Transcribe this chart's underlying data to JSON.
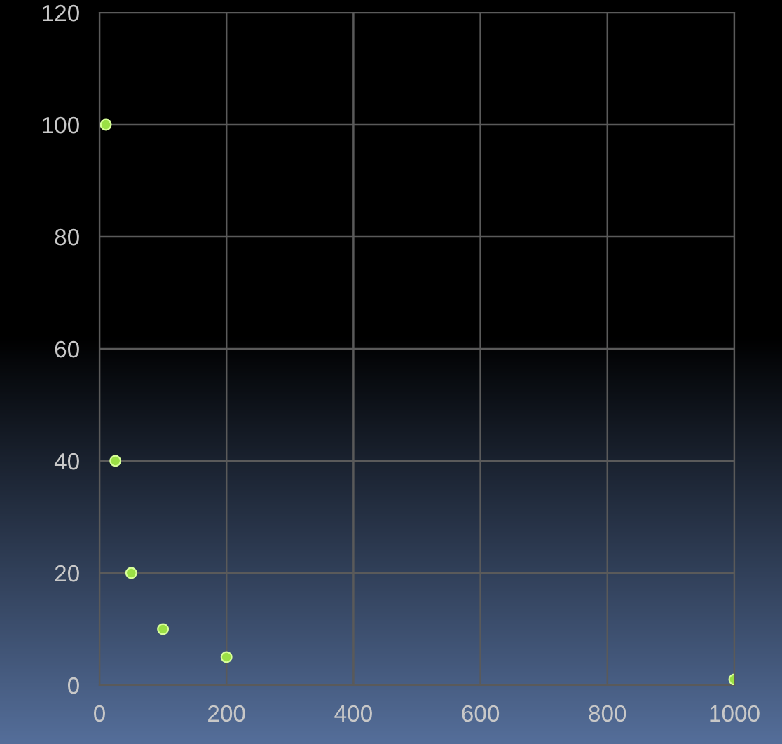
{
  "chart_data": {
    "type": "scatter",
    "series": [
      {
        "color": "#9be045",
        "x": [
          10,
          25,
          50,
          100,
          200,
          1000
        ],
        "values": [
          100,
          40,
          20,
          10,
          5,
          1
        ]
      }
    ],
    "xlim": [
      0,
      1000
    ],
    "xticks": [
      0,
      200,
      400,
      600,
      800,
      1000
    ],
    "ylim": [
      0,
      120
    ],
    "yticks": [
      0,
      20,
      40,
      60,
      80,
      100,
      120
    ],
    "grid": true,
    "marker": "circle"
  }
}
